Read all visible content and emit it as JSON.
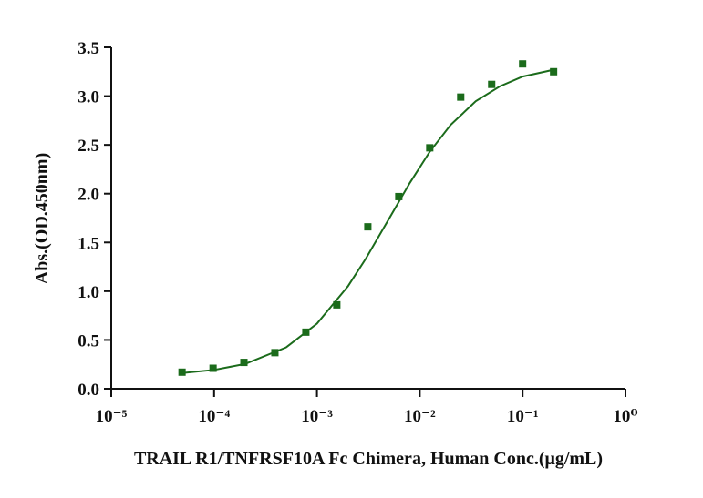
{
  "chart_data": {
    "type": "scatter",
    "x_label": "TRAIL R1/TNFRSF10A Fc Chimera, Human Conc.(μg/mL)",
    "y_label": "Abs.(OD.450nm)",
    "xscale": "log",
    "xlim": [
      1e-05,
      1
    ],
    "xticks": [
      {
        "value": 1e-05,
        "label": "10⁻⁵"
      },
      {
        "value": 0.0001,
        "label": "10⁻⁴"
      },
      {
        "value": 0.001,
        "label": "10⁻³"
      },
      {
        "value": 0.01,
        "label": "10⁻²"
      },
      {
        "value": 0.1,
        "label": "10⁻¹"
      },
      {
        "value": 1,
        "label": "10⁰"
      }
    ],
    "ylim": [
      0,
      3.5
    ],
    "yticks": [
      {
        "value": 0,
        "label": "0.0"
      },
      0.5,
      {
        "value": 1,
        "label": "1.0"
      },
      1.5,
      {
        "value": 2,
        "label": "2.0"
      },
      2.5,
      {
        "value": 3,
        "label": "3.0"
      },
      3.5
    ],
    "series": [
      {
        "kind": "points",
        "color": "#1b6b1b",
        "x": [
          4.88e-05,
          9.77e-05,
          0.000195,
          0.00039,
          0.00078,
          0.00156,
          0.003125,
          0.00625,
          0.0125,
          0.025,
          0.05,
          0.1,
          0.2
        ],
        "values": [
          0.17,
          0.21,
          0.27,
          0.37,
          0.58,
          0.86,
          1.66,
          1.97,
          2.47,
          2.99,
          3.12,
          3.33,
          3.25
        ]
      },
      {
        "kind": "curve",
        "color": "#1b6b1b",
        "x": [
          4.88e-05,
          0.0001,
          0.0002,
          0.0005,
          0.001,
          0.002,
          0.003,
          0.005,
          0.008,
          0.0125,
          0.02,
          0.035,
          0.06,
          0.1,
          0.2
        ],
        "values": [
          0.161,
          0.193,
          0.254,
          0.423,
          0.667,
          1.05,
          1.337,
          1.74,
          2.11,
          2.43,
          2.706,
          2.948,
          3.1,
          3.2,
          3.27
        ]
      }
    ]
  }
}
